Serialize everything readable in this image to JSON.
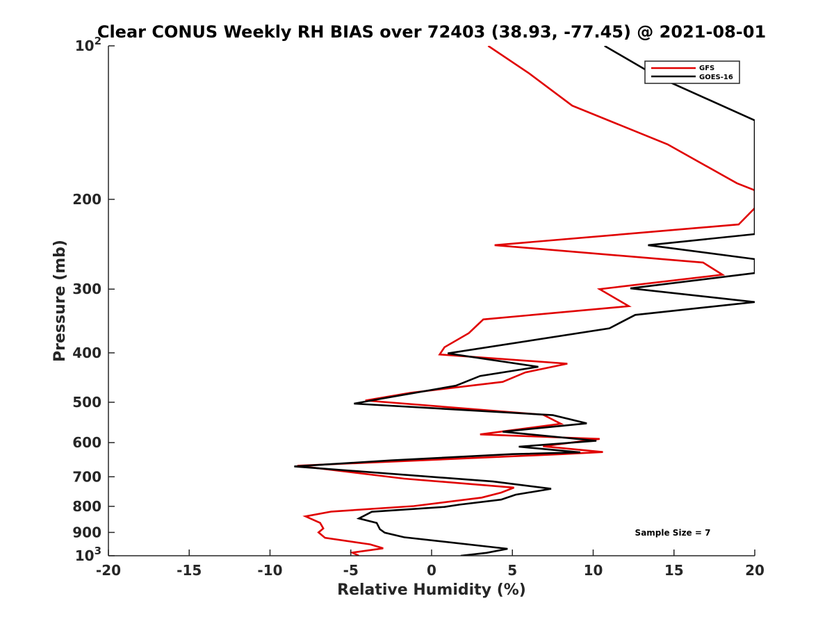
{
  "chart_data": {
    "type": "line",
    "title": "Clear CONUS Weekly RH BIAS over 72403 (38.93, -77.45) @ 2021-08-01",
    "xlabel": "Relative Humidity (%)",
    "ylabel": "Pressure (mb)",
    "xlim": [
      -20,
      20
    ],
    "ylim": [
      100,
      1000
    ],
    "y_scale": "log",
    "y_reversed": true,
    "grid": false,
    "legend_position": "top-right",
    "x_ticks": [
      -20,
      -15,
      -10,
      -5,
      0,
      5,
      10,
      15,
      20
    ],
    "x_tick_labels": [
      "-20",
      "-15",
      "-10",
      "-5",
      "0",
      "5",
      "10",
      "15",
      "20"
    ],
    "y_ticks": [
      {
        "value": 100,
        "base": "10",
        "exp": "2"
      },
      {
        "value": 200,
        "label": "200"
      },
      {
        "value": 300,
        "label": "300"
      },
      {
        "value": 400,
        "label": "400"
      },
      {
        "value": 500,
        "label": "500"
      },
      {
        "value": 600,
        "label": "600"
      },
      {
        "value": 700,
        "label": "700"
      },
      {
        "value": 800,
        "label": "800"
      },
      {
        "value": 900,
        "label": "900"
      },
      {
        "value": 1000,
        "base": "10",
        "exp": "3"
      }
    ],
    "series": [
      {
        "name": "GFS",
        "color": "#e00000",
        "x": [
          3.5,
          6.0,
          8.7,
          14.6,
          18.9,
          20,
          20,
          19.0,
          3.9,
          16.8,
          18.0,
          10.4,
          12.2,
          3.2,
          2.3,
          0.8,
          0.5,
          8.4,
          5.8,
          4.4,
          -1.3,
          -4.1,
          6.9,
          8.0,
          3.0,
          10.4,
          6.9,
          10.6,
          8.1,
          -8.3,
          -1.7,
          5.1,
          4.3,
          3.1,
          -1.1,
          -6.2,
          -7.8,
          -6.9,
          -6.7,
          -7.0,
          -6.6,
          -3.8,
          -3.0,
          -4.9,
          -4.5
        ],
        "y": [
          100,
          113,
          131,
          156,
          186,
          192,
          208,
          224,
          246,
          266,
          281,
          300,
          324,
          344,
          366,
          390,
          403,
          420,
          437,
          456,
          479,
          496,
          529,
          551,
          578,
          590,
          610,
          626,
          632,
          666,
          706,
          735,
          752,
          769,
          799,
          819,
          837,
          862,
          884,
          900,
          922,
          950,
          967,
          986,
          1000
        ]
      },
      {
        "name": "GOES-16",
        "color": "#000000",
        "x": [
          10.7,
          14.0,
          20,
          20,
          13.4,
          20,
          20,
          20,
          12.3,
          20,
          12.6,
          11.0,
          1.0,
          6.6,
          3.0,
          1.5,
          -3.1,
          -4.8,
          7.5,
          9.6,
          4.4,
          10.2,
          5.4,
          9.2,
          5.0,
          -2.5,
          -8.5,
          3.8,
          7.4,
          5.2,
          4.3,
          1.7,
          0.8,
          -3.7,
          -4.5,
          -3.4,
          -3.2,
          -2.9,
          -1.7,
          4.7,
          3.4,
          1.8
        ],
        "y": [
          100,
          115,
          140,
          234,
          246,
          262,
          274,
          279,
          299,
          318,
          337,
          358,
          401,
          426,
          444,
          464,
          492,
          503,
          530,
          550,
          571,
          595,
          611,
          627,
          632,
          650,
          668,
          715,
          739,
          759,
          776,
          794,
          802,
          820,
          845,
          862,
          887,
          901,
          920,
          969,
          987,
          1000
        ]
      }
    ],
    "annotations": [
      "Sample Size = 7"
    ]
  }
}
